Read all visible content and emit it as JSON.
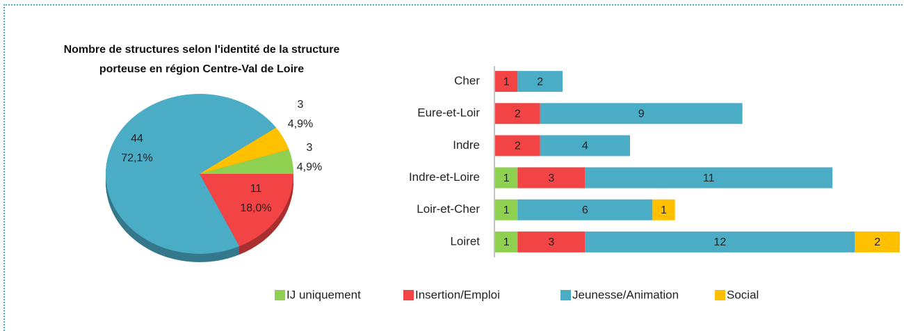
{
  "chart_data": [
    {
      "type": "pie",
      "title": "Nombre de structures selon l'identité de la structure porteuse en région Centre-Val de Loire",
      "values": [
        11,
        44,
        3,
        3
      ],
      "percentages": [
        18.0,
        72.1,
        4.9,
        4.9
      ],
      "percentage_labels": [
        "18,0%",
        "72,1%",
        "4,9%",
        "4,9%"
      ],
      "colors": [
        "#f24444",
        "#4bacc6",
        "#ffc000",
        "#8ed04f"
      ]
    },
    {
      "type": "stacked_bar_horizontal",
      "categories": [
        "Cher",
        "Eure-et-Loir",
        "Indre",
        "Indre-et-Loire",
        "Loir-et-Cher",
        "Loiret"
      ],
      "series": [
        {
          "name": "IJ uniquement",
          "color": "#8ed04f",
          "values": [
            null,
            null,
            null,
            1,
            1,
            1
          ]
        },
        {
          "name": "Insertion/Emploi",
          "color": "#f24444",
          "values": [
            1,
            2,
            2,
            3,
            null,
            3
          ]
        },
        {
          "name": "Jeunesse/Animation",
          "color": "#4bacc6",
          "values": [
            2,
            9,
            4,
            11,
            6,
            12
          ]
        },
        {
          "name": "Social",
          "color": "#ffc000",
          "values": [
            null,
            null,
            null,
            null,
            1,
            2
          ]
        }
      ],
      "xlim": [
        0,
        18
      ],
      "legend": "bottom"
    }
  ]
}
